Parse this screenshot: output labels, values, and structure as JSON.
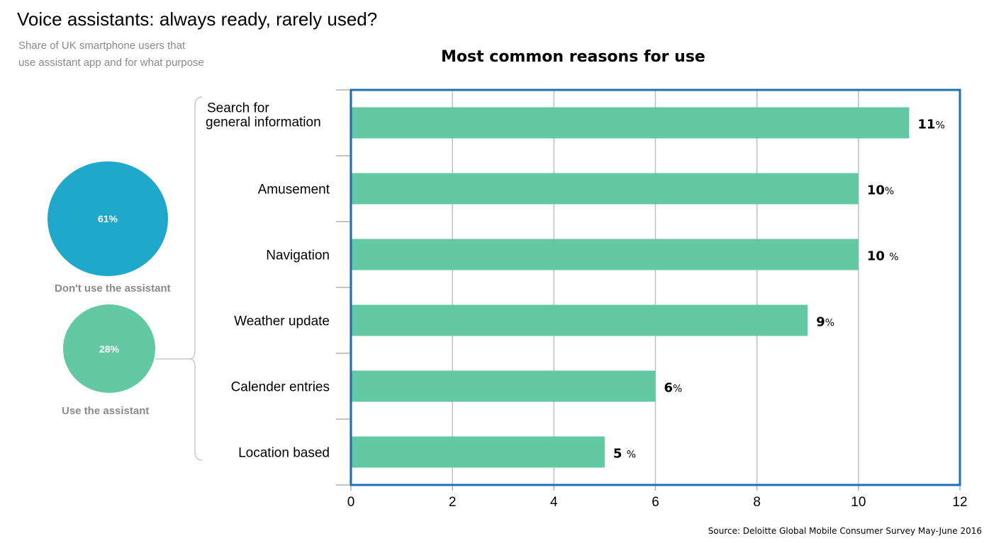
{
  "header": {
    "title": "Voice assistants: always ready, rarely used?",
    "subtitle_lines": [
      "Share of UK smartphone users that",
      "use assistant app and for what purpose"
    ]
  },
  "summary": {
    "dont_use": {
      "value_label": "61%",
      "label": "Don't use the assistant",
      "color": "#1fa8cc"
    },
    "use": {
      "value_label": "28%",
      "label": "Use the assistant",
      "color": "#63c9a3"
    }
  },
  "source": "Source: Deloitte Global Mobile Consumer Survey May-June 2016",
  "chart_data": {
    "type": "bar",
    "orientation": "horizontal",
    "title": "Most common reasons for use",
    "categories": [
      "Search for\ngeneral information",
      "Amusement",
      "Navigation",
      "Weather update",
      "Calender entries",
      "Location based"
    ],
    "values": [
      11,
      10,
      10,
      9,
      6,
      5
    ],
    "value_labels": [
      "11",
      "10",
      "10 ",
      "9",
      "6",
      "5 "
    ],
    "value_unit": "%",
    "xlim": [
      0,
      12
    ],
    "xticks": [
      0,
      2,
      4,
      6,
      8,
      10,
      12
    ],
    "grid": true,
    "bar_color": "#63c9a3",
    "frame_color": "#1f6fb5"
  }
}
